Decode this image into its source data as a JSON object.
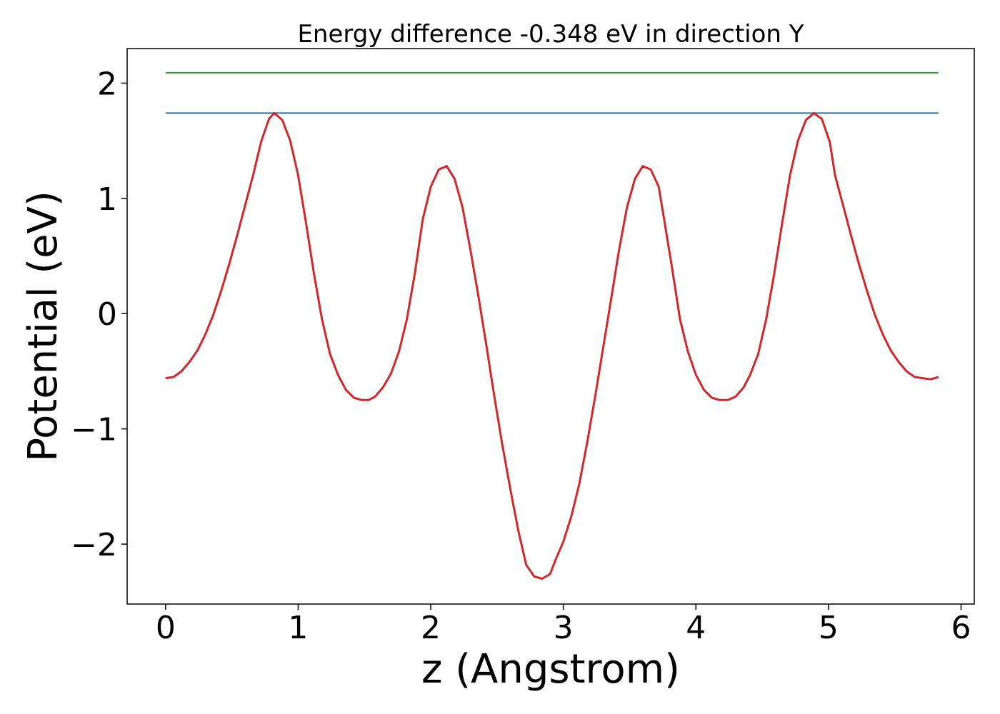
{
  "chart_data": {
    "type": "line",
    "title": "Energy difference -0.348 eV in direction Y",
    "xlabel": "z (Angstrom)",
    "ylabel": "Potential (eV)",
    "xlim": [
      -0.29,
      6.1
    ],
    "ylim": [
      -2.52,
      2.3
    ],
    "xticks": [
      0,
      1,
      2,
      3,
      4,
      5,
      6
    ],
    "xtick_labels": [
      "0",
      "1",
      "2",
      "3",
      "4",
      "5",
      "6"
    ],
    "yticks": [
      -2,
      -1,
      0,
      1,
      2
    ],
    "ytick_labels": [
      "−2",
      "−1",
      "0",
      "1",
      "2"
    ],
    "grid": false,
    "series": [
      {
        "color": "#2ca02c",
        "x": [
          0.0,
          5.83
        ],
        "y": [
          2.09,
          2.09
        ]
      },
      {
        "color": "#1f77b4",
        "x": [
          0.0,
          5.83
        ],
        "y": [
          1.74,
          1.74
        ]
      },
      {
        "color": "#d62728",
        "x": [
          0.0,
          0.06,
          0.12,
          0.18,
          0.24,
          0.3,
          0.36,
          0.42,
          0.48,
          0.54,
          0.6,
          0.66,
          0.72,
          0.78,
          0.82,
          0.88,
          0.94,
          1.0,
          1.06,
          1.12,
          1.18,
          1.24,
          1.3,
          1.36,
          1.42,
          1.48,
          1.53,
          1.58,
          1.64,
          1.7,
          1.76,
          1.82,
          1.88,
          1.94,
          2.0,
          2.06,
          2.12,
          2.18,
          2.24,
          2.3,
          2.36,
          2.42,
          2.48,
          2.54,
          2.6,
          2.66,
          2.72,
          2.78,
          2.84,
          2.9,
          2.94,
          3.0,
          3.06,
          3.12,
          3.18,
          3.24,
          3.3,
          3.36,
          3.42,
          3.48,
          3.54,
          3.6,
          3.66,
          3.72,
          3.76,
          3.82,
          3.88,
          3.94,
          4.0,
          4.06,
          4.12,
          4.18,
          4.24,
          4.3,
          4.36,
          4.41,
          4.47,
          4.53,
          4.59,
          4.65,
          4.71,
          4.77,
          4.83,
          4.89,
          4.95,
          5.01,
          5.05,
          5.11,
          5.17,
          5.23,
          5.29,
          5.35,
          5.41,
          5.47,
          5.53,
          5.59,
          5.65,
          5.71,
          5.77,
          5.83
        ],
        "y": [
          -0.56,
          -0.55,
          -0.5,
          -0.42,
          -0.32,
          -0.18,
          -0.01,
          0.2,
          0.43,
          0.68,
          0.94,
          1.2,
          1.49,
          1.69,
          1.74,
          1.68,
          1.5,
          1.2,
          0.78,
          0.34,
          -0.05,
          -0.35,
          -0.53,
          -0.66,
          -0.73,
          -0.75,
          -0.75,
          -0.72,
          -0.64,
          -0.52,
          -0.33,
          -0.05,
          0.35,
          0.82,
          1.1,
          1.25,
          1.28,
          1.17,
          0.92,
          0.55,
          0.15,
          -0.28,
          -0.72,
          -1.14,
          -1.52,
          -1.88,
          -2.18,
          -2.28,
          -2.3,
          -2.26,
          -2.14,
          -1.98,
          -1.76,
          -1.48,
          -1.12,
          -0.72,
          -0.3,
          0.12,
          0.55,
          0.92,
          1.17,
          1.28,
          1.25,
          1.1,
          0.82,
          0.4,
          -0.05,
          -0.33,
          -0.53,
          -0.66,
          -0.73,
          -0.75,
          -0.75,
          -0.72,
          -0.64,
          -0.53,
          -0.35,
          -0.05,
          0.34,
          0.78,
          1.2,
          1.5,
          1.68,
          1.74,
          1.69,
          1.49,
          1.2,
          0.94,
          0.68,
          0.43,
          0.2,
          -0.01,
          -0.18,
          -0.32,
          -0.42,
          -0.5,
          -0.55,
          -0.56,
          -0.57,
          -0.55
        ]
      }
    ]
  }
}
